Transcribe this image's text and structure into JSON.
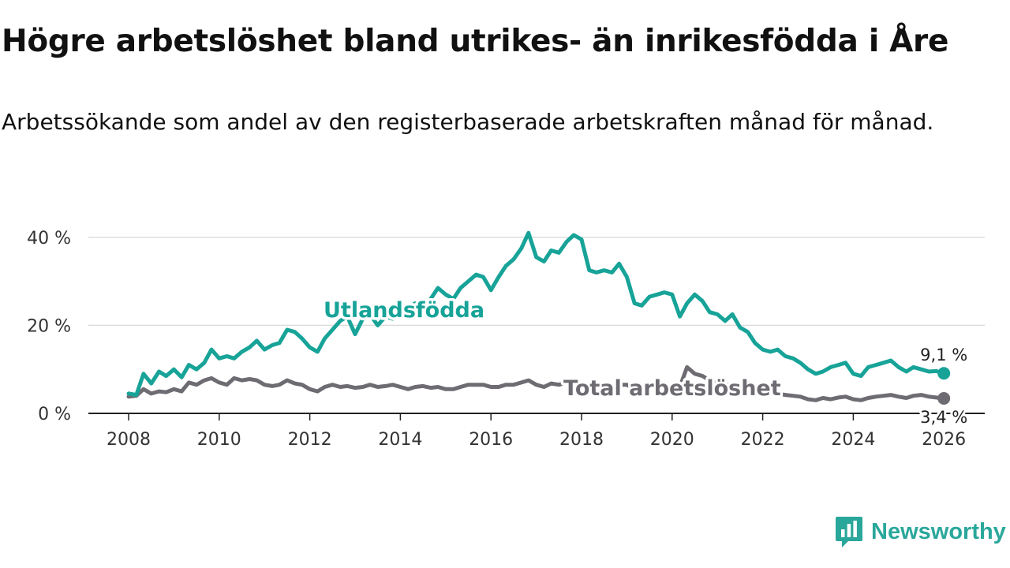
{
  "header": {
    "title": "Högre arbetslöshet bland utrikes- än inrikesfödda i Åre",
    "subtitle": "Arbetssökande som andel av den registerbaserade arbetskraften månad för månad."
  },
  "brand": {
    "name": "Newsworthy",
    "icon": "newsworthy-logo-icon",
    "color": "#2aa79b"
  },
  "chart_data": {
    "type": "line",
    "title": "Högre arbetslöshet bland utrikes- än inrikesfödda i Åre",
    "subtitle": "Arbetssökande som andel av den registerbaserade arbetskraften månad för månad.",
    "xlabel": "",
    "ylabel": "",
    "xlim": [
      2007.9,
      2026.3
    ],
    "ylim": [
      0,
      45
    ],
    "grid": true,
    "y_ticks": [
      0,
      20,
      40
    ],
    "y_tick_labels": [
      "0 %",
      "20 %",
      "40 %"
    ],
    "x_ticks": [
      2008,
      2010,
      2012,
      2014,
      2016,
      2018,
      2020,
      2022,
      2024,
      2026
    ],
    "x_tick_labels": [
      "2008",
      "2010",
      "2012",
      "2014",
      "2016",
      "2018",
      "2020",
      "2022",
      "2024",
      "2026"
    ],
    "series": [
      {
        "name": "Utlandsfödda",
        "color": "#17a398",
        "last_label": "9,1 %",
        "points": [
          [
            2008.0,
            4.5
          ],
          [
            2008.17,
            4.2
          ],
          [
            2008.33,
            9.0
          ],
          [
            2008.5,
            6.8
          ],
          [
            2008.67,
            9.5
          ],
          [
            2008.83,
            8.5
          ],
          [
            2009.0,
            10.0
          ],
          [
            2009.17,
            8.2
          ],
          [
            2009.33,
            11.0
          ],
          [
            2009.5,
            10.0
          ],
          [
            2009.67,
            11.5
          ],
          [
            2009.83,
            14.5
          ],
          [
            2010.0,
            12.5
          ],
          [
            2010.17,
            13.0
          ],
          [
            2010.33,
            12.5
          ],
          [
            2010.5,
            14.0
          ],
          [
            2010.67,
            15.0
          ],
          [
            2010.83,
            16.5
          ],
          [
            2011.0,
            14.5
          ],
          [
            2011.17,
            15.5
          ],
          [
            2011.33,
            16.0
          ],
          [
            2011.5,
            19.0
          ],
          [
            2011.67,
            18.5
          ],
          [
            2011.83,
            17.0
          ],
          [
            2012.0,
            15.0
          ],
          [
            2012.17,
            14.0
          ],
          [
            2012.33,
            17.0
          ],
          [
            2012.5,
            19.0
          ],
          [
            2012.67,
            21.0
          ],
          [
            2012.83,
            22.0
          ],
          [
            2013.0,
            18.0
          ],
          [
            2013.17,
            21.5
          ],
          [
            2013.33,
            22.5
          ],
          [
            2013.5,
            20.0
          ],
          [
            2013.67,
            22.0
          ],
          [
            2013.83,
            21.5
          ],
          [
            2014.0,
            23.0
          ],
          [
            2014.17,
            24.0
          ],
          [
            2014.33,
            25.0
          ],
          [
            2014.5,
            24.0
          ],
          [
            2014.67,
            26.0
          ],
          [
            2014.83,
            28.5
          ],
          [
            2015.0,
            27.0
          ],
          [
            2015.17,
            26.0
          ],
          [
            2015.33,
            28.5
          ],
          [
            2015.5,
            30.0
          ],
          [
            2015.67,
            31.5
          ],
          [
            2015.83,
            31.0
          ],
          [
            2016.0,
            28.0
          ],
          [
            2016.17,
            31.0
          ],
          [
            2016.33,
            33.5
          ],
          [
            2016.5,
            35.0
          ],
          [
            2016.67,
            37.5
          ],
          [
            2016.83,
            41.0
          ],
          [
            2017.0,
            35.5
          ],
          [
            2017.17,
            34.5
          ],
          [
            2017.33,
            37.0
          ],
          [
            2017.5,
            36.5
          ],
          [
            2017.67,
            39.0
          ],
          [
            2017.83,
            40.5
          ],
          [
            2018.0,
            39.5
          ],
          [
            2018.17,
            32.5
          ],
          [
            2018.33,
            32.0
          ],
          [
            2018.5,
            32.5
          ],
          [
            2018.67,
            32.0
          ],
          [
            2018.83,
            34.0
          ],
          [
            2019.0,
            31.0
          ],
          [
            2019.17,
            25.0
          ],
          [
            2019.33,
            24.5
          ],
          [
            2019.5,
            26.5
          ],
          [
            2019.67,
            27.0
          ],
          [
            2019.83,
            27.5
          ],
          [
            2020.0,
            27.0
          ],
          [
            2020.17,
            22.0
          ],
          [
            2020.33,
            25.0
          ],
          [
            2020.5,
            27.0
          ],
          [
            2020.67,
            25.5
          ],
          [
            2020.83,
            23.0
          ],
          [
            2021.0,
            22.5
          ],
          [
            2021.17,
            21.0
          ],
          [
            2021.33,
            22.5
          ],
          [
            2021.5,
            19.5
          ],
          [
            2021.67,
            18.5
          ],
          [
            2021.83,
            16.0
          ],
          [
            2022.0,
            14.5
          ],
          [
            2022.17,
            14.0
          ],
          [
            2022.33,
            14.5
          ],
          [
            2022.5,
            13.0
          ],
          [
            2022.67,
            12.5
          ],
          [
            2022.83,
            11.5
          ],
          [
            2023.0,
            10.0
          ],
          [
            2023.17,
            9.0
          ],
          [
            2023.33,
            9.5
          ],
          [
            2023.5,
            10.5
          ],
          [
            2023.67,
            11.0
          ],
          [
            2023.83,
            11.5
          ],
          [
            2024.0,
            9.0
          ],
          [
            2024.17,
            8.5
          ],
          [
            2024.33,
            10.5
          ],
          [
            2024.5,
            11.0
          ],
          [
            2024.67,
            11.5
          ],
          [
            2024.83,
            12.0
          ],
          [
            2025.0,
            10.5
          ],
          [
            2025.17,
            9.5
          ],
          [
            2025.33,
            10.5
          ],
          [
            2025.5,
            10.0
          ],
          [
            2025.67,
            9.5
          ],
          [
            2025.83,
            9.6
          ],
          [
            2026.0,
            9.1
          ]
        ]
      },
      {
        "name": "Total arbetslöshet",
        "color": "#6e6c72",
        "last_label": "3,4 %",
        "points": [
          [
            2008.0,
            3.8
          ],
          [
            2008.17,
            4.0
          ],
          [
            2008.33,
            5.5
          ],
          [
            2008.5,
            4.5
          ],
          [
            2008.67,
            5.0
          ],
          [
            2008.83,
            4.8
          ],
          [
            2009.0,
            5.5
          ],
          [
            2009.17,
            5.0
          ],
          [
            2009.33,
            7.0
          ],
          [
            2009.5,
            6.5
          ],
          [
            2009.67,
            7.5
          ],
          [
            2009.83,
            8.0
          ],
          [
            2010.0,
            7.0
          ],
          [
            2010.17,
            6.5
          ],
          [
            2010.33,
            8.0
          ],
          [
            2010.5,
            7.5
          ],
          [
            2010.67,
            7.8
          ],
          [
            2010.83,
            7.5
          ],
          [
            2011.0,
            6.5
          ],
          [
            2011.17,
            6.2
          ],
          [
            2011.33,
            6.5
          ],
          [
            2011.5,
            7.5
          ],
          [
            2011.67,
            6.8
          ],
          [
            2011.83,
            6.5
          ],
          [
            2012.0,
            5.5
          ],
          [
            2012.17,
            5.0
          ],
          [
            2012.33,
            6.0
          ],
          [
            2012.5,
            6.5
          ],
          [
            2012.67,
            6.0
          ],
          [
            2012.83,
            6.2
          ],
          [
            2013.0,
            5.8
          ],
          [
            2013.17,
            6.0
          ],
          [
            2013.33,
            6.5
          ],
          [
            2013.5,
            6.0
          ],
          [
            2013.67,
            6.2
          ],
          [
            2013.83,
            6.5
          ],
          [
            2014.0,
            6.0
          ],
          [
            2014.17,
            5.5
          ],
          [
            2014.33,
            6.0
          ],
          [
            2014.5,
            6.2
          ],
          [
            2014.67,
            5.8
          ],
          [
            2014.83,
            6.0
          ],
          [
            2015.0,
            5.5
          ],
          [
            2015.17,
            5.5
          ],
          [
            2015.33,
            6.0
          ],
          [
            2015.5,
            6.5
          ],
          [
            2015.67,
            6.5
          ],
          [
            2015.83,
            6.5
          ],
          [
            2016.0,
            6.0
          ],
          [
            2016.17,
            6.0
          ],
          [
            2016.33,
            6.5
          ],
          [
            2016.5,
            6.5
          ],
          [
            2016.67,
            7.0
          ],
          [
            2016.83,
            7.5
          ],
          [
            2017.0,
            6.5
          ],
          [
            2017.17,
            6.0
          ],
          [
            2017.33,
            6.8
          ],
          [
            2017.5,
            6.5
          ],
          [
            2017.67,
            7.0
          ],
          [
            2017.83,
            6.8
          ],
          [
            2018.0,
            6.5
          ],
          [
            2018.17,
            6.0
          ],
          [
            2018.33,
            6.0
          ],
          [
            2018.5,
            6.0
          ],
          [
            2018.67,
            6.0
          ],
          [
            2018.83,
            6.5
          ],
          [
            2019.0,
            6.5
          ],
          [
            2019.17,
            5.5
          ],
          [
            2019.33,
            5.5
          ],
          [
            2019.5,
            6.0
          ],
          [
            2019.67,
            6.5
          ],
          [
            2019.83,
            6.2
          ],
          [
            2020.0,
            6.0
          ],
          [
            2020.17,
            6.0
          ],
          [
            2020.33,
            10.5
          ],
          [
            2020.5,
            9.0
          ],
          [
            2020.67,
            8.5
          ],
          [
            2020.83,
            7.5
          ],
          [
            2021.0,
            7.0
          ],
          [
            2021.17,
            6.5
          ],
          [
            2021.33,
            6.5
          ],
          [
            2021.5,
            6.0
          ],
          [
            2021.67,
            5.5
          ],
          [
            2021.83,
            5.2
          ],
          [
            2022.0,
            5.0
          ],
          [
            2022.17,
            4.8
          ],
          [
            2022.33,
            4.5
          ],
          [
            2022.5,
            4.2
          ],
          [
            2022.67,
            4.0
          ],
          [
            2022.83,
            3.8
          ],
          [
            2023.0,
            3.2
          ],
          [
            2023.17,
            3.0
          ],
          [
            2023.33,
            3.5
          ],
          [
            2023.5,
            3.2
          ],
          [
            2023.67,
            3.6
          ],
          [
            2023.83,
            3.8
          ],
          [
            2024.0,
            3.2
          ],
          [
            2024.17,
            3.0
          ],
          [
            2024.33,
            3.5
          ],
          [
            2024.5,
            3.8
          ],
          [
            2024.67,
            4.0
          ],
          [
            2024.83,
            4.2
          ],
          [
            2025.0,
            3.8
          ],
          [
            2025.17,
            3.5
          ],
          [
            2025.33,
            4.0
          ],
          [
            2025.5,
            4.2
          ],
          [
            2025.67,
            3.8
          ],
          [
            2025.83,
            3.6
          ],
          [
            2026.0,
            3.4
          ]
        ]
      }
    ]
  }
}
